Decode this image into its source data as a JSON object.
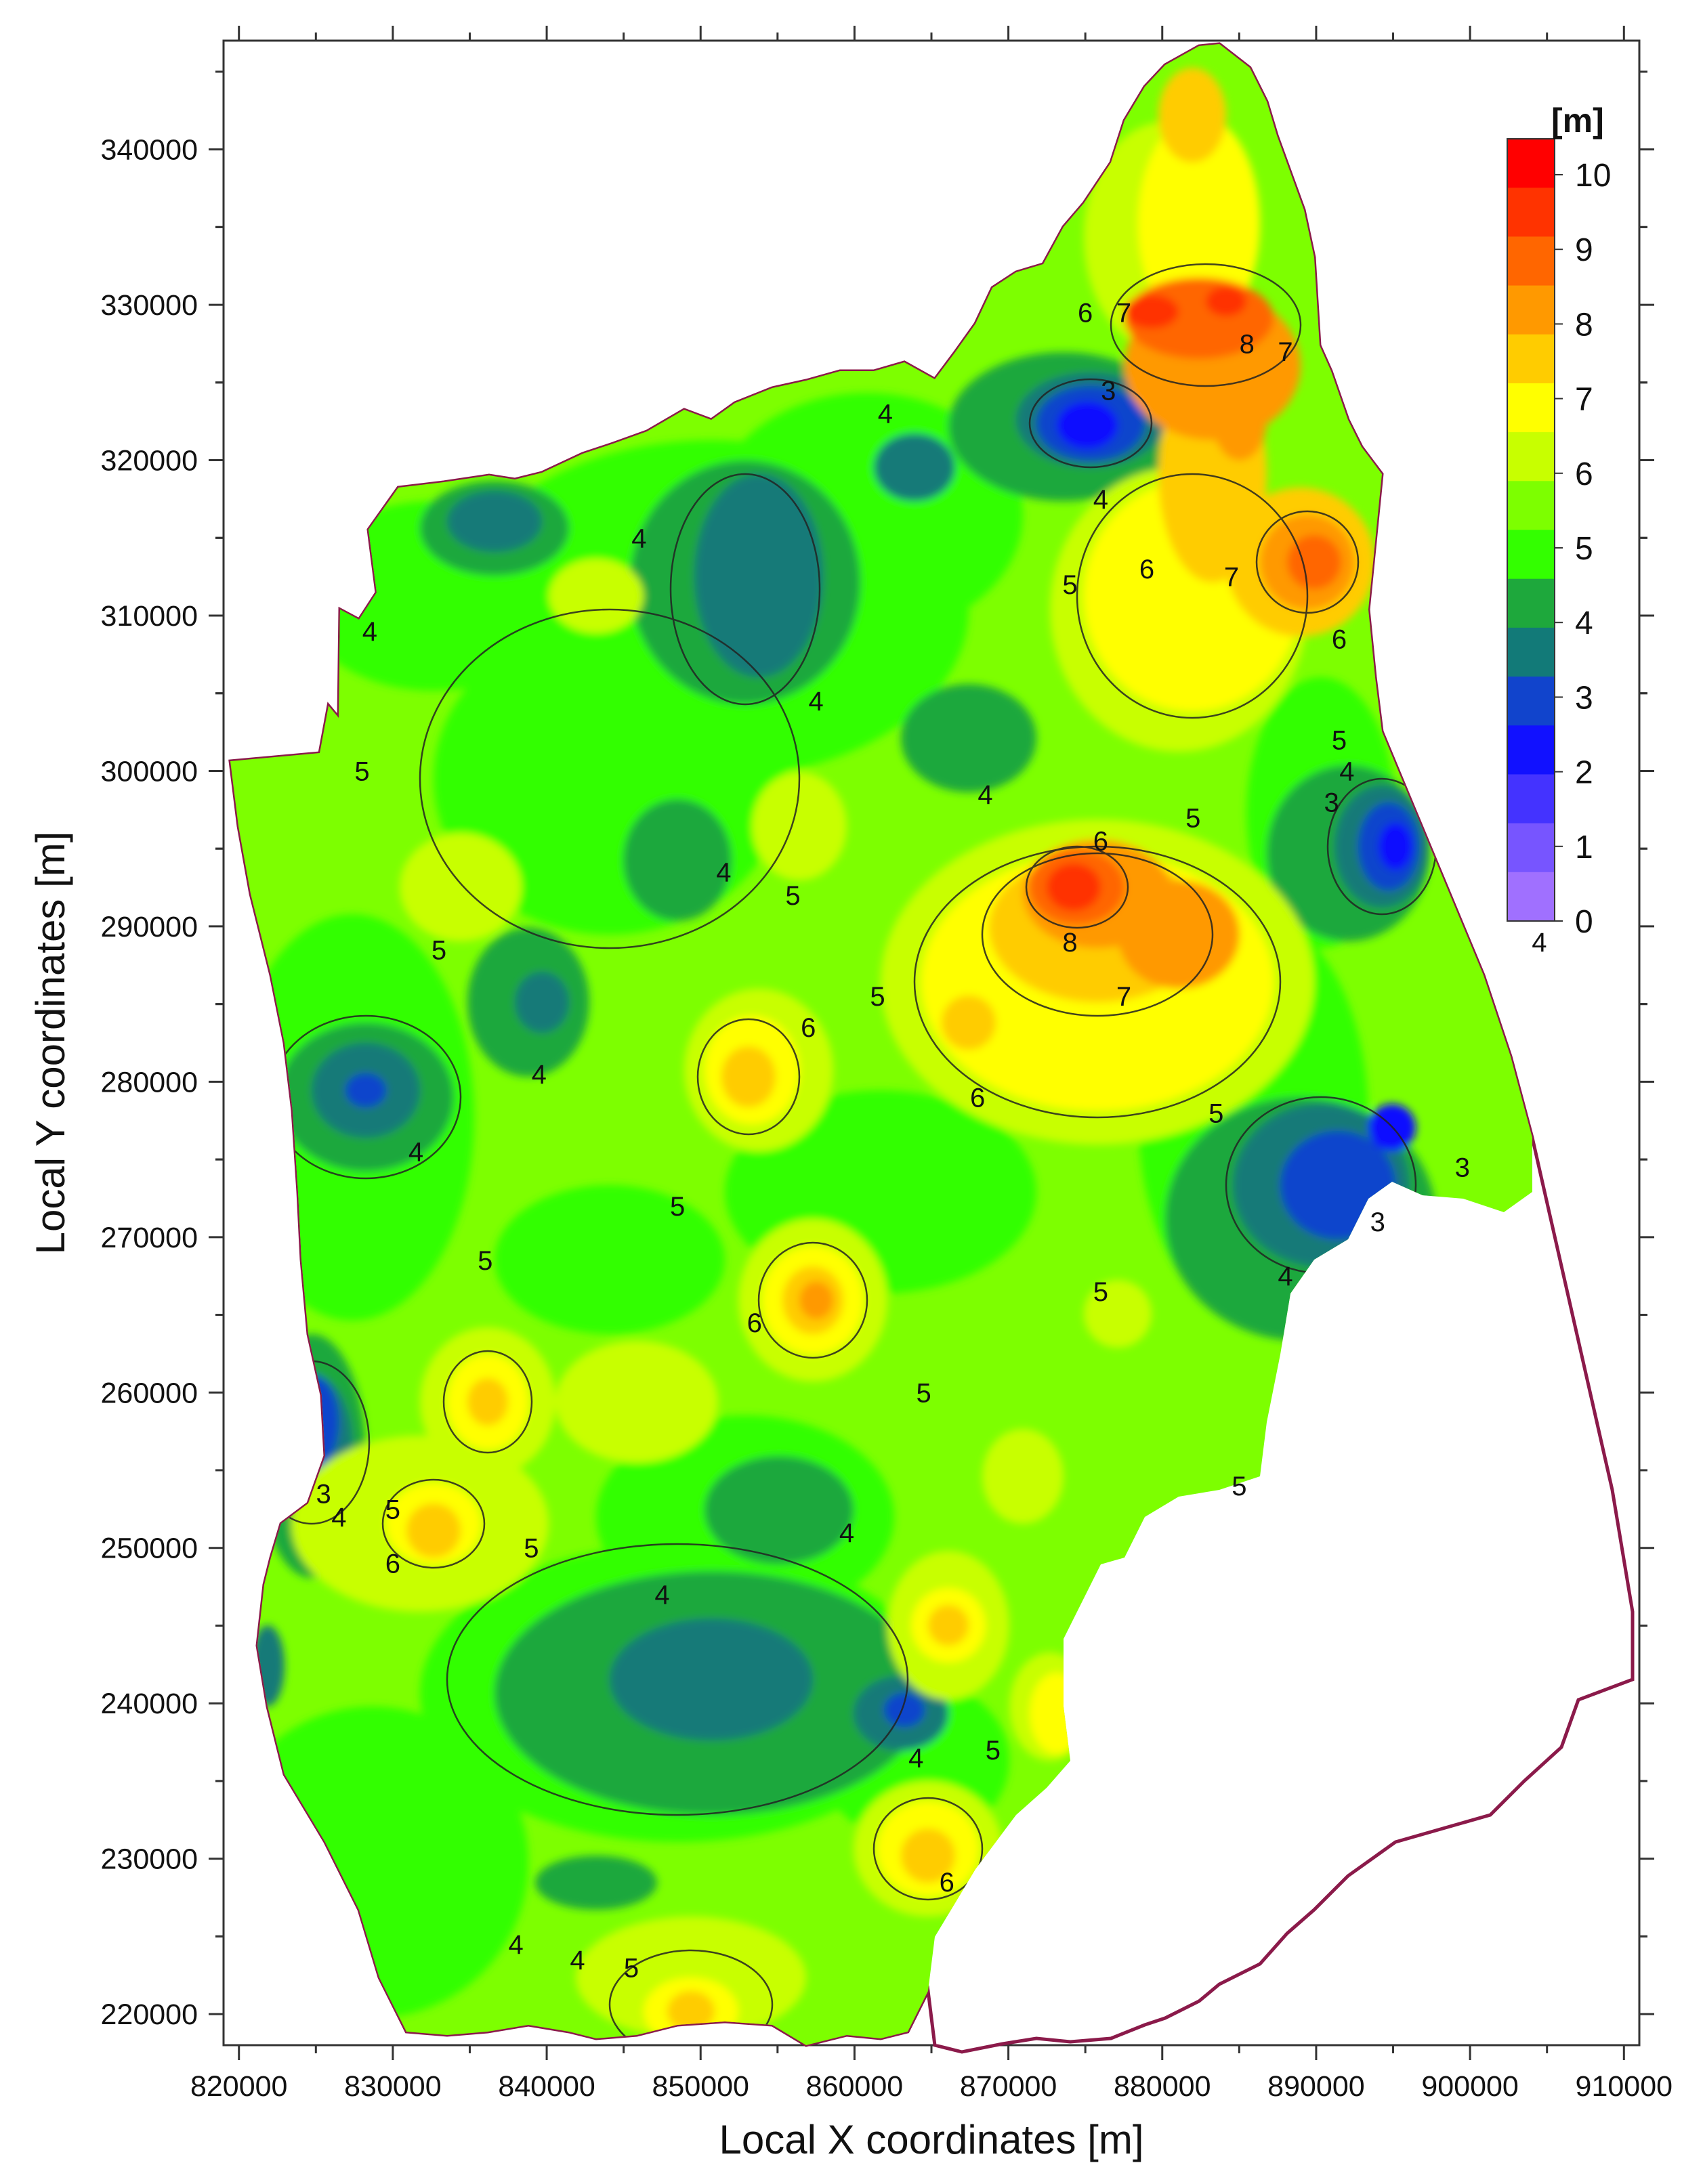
{
  "axes": {
    "x_title": "Local X coordinates [m]",
    "y_title": "Local Y coordinates [m]",
    "x_ticks": [
      "820000",
      "830000",
      "840000",
      "850000",
      "860000",
      "870000",
      "880000",
      "890000",
      "900000",
      "910000"
    ],
    "y_ticks": [
      "340000",
      "330000",
      "320000",
      "310000",
      "300000",
      "290000",
      "280000",
      "270000",
      "260000",
      "250000",
      "240000",
      "230000",
      "220000"
    ],
    "x_range": [
      819000,
      911000
    ],
    "y_range": [
      218000,
      347000
    ]
  },
  "legend": {
    "unit": "[m]",
    "labels": [
      "10",
      "9",
      "8",
      "7",
      "6",
      "5",
      "4",
      "3",
      "2",
      "1",
      "0"
    ],
    "colors": [
      "#ff0000",
      "#ff3300",
      "#ff6600",
      "#ff9900",
      "#ffcc00",
      "#ffff00",
      "#c8ff00",
      "#7dff00",
      "#33ff00",
      "#1ea83c",
      "#127a78",
      "#1144cc",
      "#1111ff",
      "#4433ff",
      "#7755ff",
      "#a070ff"
    ]
  },
  "contour_labels": [
    {
      "text": "4",
      "x": 862000,
      "y": 323000
    },
    {
      "text": "3",
      "x": 876500,
      "y": 324500
    },
    {
      "text": "4",
      "x": 876000,
      "y": 317500
    },
    {
      "text": "6",
      "x": 875000,
      "y": 329500
    },
    {
      "text": "7",
      "x": 877500,
      "y": 329500
    },
    {
      "text": "8",
      "x": 885500,
      "y": 327500
    },
    {
      "text": "7",
      "x": 888000,
      "y": 327000
    },
    {
      "text": "6",
      "x": 879000,
      "y": 313000
    },
    {
      "text": "7",
      "x": 884500,
      "y": 312500
    },
    {
      "text": "5",
      "x": 874000,
      "y": 312000
    },
    {
      "text": "6",
      "x": 891500,
      "y": 308500
    },
    {
      "text": "4",
      "x": 846000,
      "y": 315000
    },
    {
      "text": "4",
      "x": 828500,
      "y": 309000
    },
    {
      "text": "4",
      "x": 857500,
      "y": 304500
    },
    {
      "text": "4",
      "x": 868500,
      "y": 298500
    },
    {
      "text": "5",
      "x": 828000,
      "y": 300000
    },
    {
      "text": "5",
      "x": 891500,
      "y": 302000
    },
    {
      "text": "4",
      "x": 892000,
      "y": 300000
    },
    {
      "text": "3",
      "x": 891000,
      "y": 298000
    },
    {
      "text": "5",
      "x": 882000,
      "y": 297000
    },
    {
      "text": "6",
      "x": 876000,
      "y": 295500
    },
    {
      "text": "4",
      "x": 851500,
      "y": 293500
    },
    {
      "text": "5",
      "x": 856000,
      "y": 292000
    },
    {
      "text": "5",
      "x": 833000,
      "y": 288500
    },
    {
      "text": "8",
      "x": 874000,
      "y": 289000
    },
    {
      "text": "7",
      "x": 877500,
      "y": 285500
    },
    {
      "text": "5",
      "x": 861500,
      "y": 285500
    },
    {
      "text": "4",
      "x": 904500,
      "y": 289000
    },
    {
      "text": "6",
      "x": 857000,
      "y": 283500
    },
    {
      "text": "4",
      "x": 839500,
      "y": 280500
    },
    {
      "text": "6",
      "x": 868000,
      "y": 279000
    },
    {
      "text": "5",
      "x": 883500,
      "y": 278000
    },
    {
      "text": "4",
      "x": 831500,
      "y": 275500
    },
    {
      "text": "3",
      "x": 899500,
      "y": 274500
    },
    {
      "text": "3",
      "x": 894000,
      "y": 271000
    },
    {
      "text": "5",
      "x": 848500,
      "y": 272000
    },
    {
      "text": "5",
      "x": 836000,
      "y": 268500
    },
    {
      "text": "5",
      "x": 876000,
      "y": 266500
    },
    {
      "text": "4",
      "x": 888000,
      "y": 267500
    },
    {
      "text": "6",
      "x": 853500,
      "y": 264500
    },
    {
      "text": "5",
      "x": 864500,
      "y": 260000
    },
    {
      "text": "3",
      "x": 825500,
      "y": 253500
    },
    {
      "text": "5",
      "x": 830000,
      "y": 252500
    },
    {
      "text": "4",
      "x": 826500,
      "y": 252000
    },
    {
      "text": "5",
      "x": 885000,
      "y": 254000
    },
    {
      "text": "6",
      "x": 830000,
      "y": 249000
    },
    {
      "text": "5",
      "x": 839000,
      "y": 250000
    },
    {
      "text": "4",
      "x": 859500,
      "y": 251000
    },
    {
      "text": "4",
      "x": 847500,
      "y": 247000
    },
    {
      "text": "4",
      "x": 864000,
      "y": 236500
    },
    {
      "text": "5",
      "x": 869000,
      "y": 237000
    },
    {
      "text": "6",
      "x": 866000,
      "y": 228500
    },
    {
      "text": "4",
      "x": 838000,
      "y": 224500
    },
    {
      "text": "4",
      "x": 842000,
      "y": 223500
    },
    {
      "text": "5",
      "x": 845500,
      "y": 223000
    }
  ]
}
